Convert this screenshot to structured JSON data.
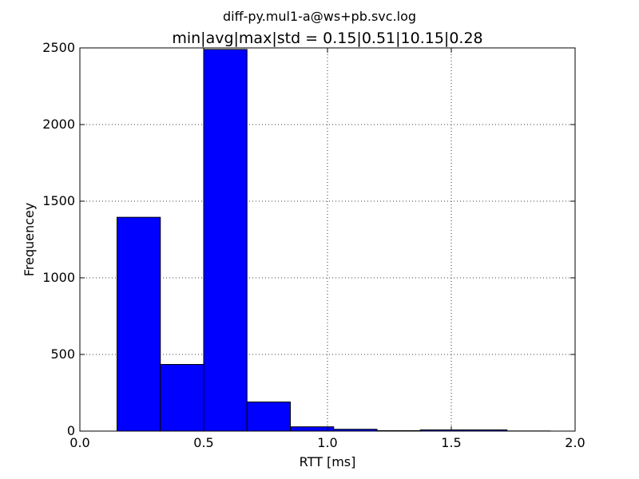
{
  "chart_data": {
    "type": "bar",
    "suptitle": "diff-py.mul1-a@ws+pb.svc.log",
    "title": "min|avg|max|std = 0.15|0.51|10.15|0.28",
    "xlabel": "RTT [ms]",
    "ylabel": "Frequencey",
    "xlim": [
      0.0,
      2.0
    ],
    "ylim": [
      0,
      2500
    ],
    "xticks": [
      "0.0",
      "0.5",
      "1.0",
      "1.5",
      "2.0"
    ],
    "yticks": [
      "0",
      "500",
      "1000",
      "1500",
      "2000",
      "2500"
    ],
    "grid": true,
    "bar_color": "#0000ff",
    "bins": [
      {
        "x0": 0.15,
        "x1": 0.325,
        "value": 1395
      },
      {
        "x0": 0.325,
        "x1": 0.5,
        "value": 435
      },
      {
        "x0": 0.5,
        "x1": 0.675,
        "value": 2490
      },
      {
        "x0": 0.675,
        "x1": 0.85,
        "value": 190
      },
      {
        "x0": 0.85,
        "x1": 1.025,
        "value": 28
      },
      {
        "x0": 1.025,
        "x1": 1.2,
        "value": 12
      },
      {
        "x0": 1.2,
        "x1": 1.375,
        "value": 3
      },
      {
        "x0": 1.375,
        "x1": 1.55,
        "value": 8
      },
      {
        "x0": 1.55,
        "x1": 1.725,
        "value": 8
      },
      {
        "x0": 1.725,
        "x1": 1.9,
        "value": 1
      }
    ]
  }
}
